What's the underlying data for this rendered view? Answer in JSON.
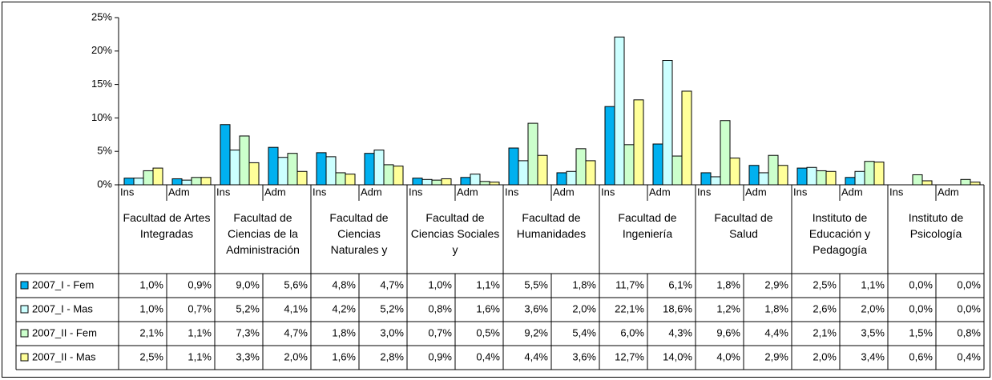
{
  "chart_data": {
    "type": "bar",
    "categories": [
      "Ins",
      "Adm",
      "Ins",
      "Adm",
      "Ins",
      "Adm",
      "Ins",
      "Adm",
      "Ins",
      "Adm",
      "Ins",
      "Adm",
      "Ins",
      "Adm",
      "Ins",
      "Adm",
      "Ins",
      "Adm"
    ],
    "groups": [
      "Facultad de Artes Integradas",
      "Facultad de Ciencias de la Administración",
      "Facultad de Ciencias Naturales y",
      "Facultad de Ciencias Sociales y",
      "Facultad de Humanidades",
      "Facultad de Ingeniería",
      "Facultad de Salud",
      "Instituto de Educación y Pedagogía",
      "Instituto de Psicología"
    ],
    "series": [
      {
        "name": "2007_I - Fem",
        "color": "#00b0f0",
        "values": [
          1.0,
          0.9,
          9.0,
          5.6,
          4.8,
          4.7,
          1.0,
          1.1,
          5.5,
          1.8,
          11.7,
          6.1,
          1.8,
          2.9,
          2.5,
          1.1,
          0.0,
          0.0
        ],
        "value_labels": [
          "1,0%",
          "0,9%",
          "9,0%",
          "5,6%",
          "4,8%",
          "4,7%",
          "1,0%",
          "1,1%",
          "5,5%",
          "1,8%",
          "11,7%",
          "6,1%",
          "1,8%",
          "2,9%",
          "2,5%",
          "1,1%",
          "0,0%",
          "0,0%"
        ]
      },
      {
        "name": "2007_I - Mas",
        "color": "#ccffff",
        "values": [
          1.0,
          0.7,
          5.2,
          4.1,
          4.2,
          5.2,
          0.8,
          1.6,
          3.6,
          2.0,
          22.1,
          18.6,
          1.2,
          1.8,
          2.6,
          2.0,
          0.0,
          0.0
        ],
        "value_labels": [
          "1,0%",
          "0,7%",
          "5,2%",
          "4,1%",
          "4,2%",
          "5,2%",
          "0,8%",
          "1,6%",
          "3,6%",
          "2,0%",
          "22,1%",
          "18,6%",
          "1,2%",
          "1,8%",
          "2,6%",
          "2,0%",
          "0,0%",
          "0,0%"
        ]
      },
      {
        "name": "2007_II - Fem",
        "color": "#ccffcc",
        "values": [
          2.1,
          1.1,
          7.3,
          4.7,
          1.8,
          3.0,
          0.7,
          0.5,
          9.2,
          5.4,
          6.0,
          4.3,
          9.6,
          4.4,
          2.1,
          3.5,
          1.5,
          0.8
        ],
        "value_labels": [
          "2,1%",
          "1,1%",
          "7,3%",
          "4,7%",
          "1,8%",
          "3,0%",
          "0,7%",
          "0,5%",
          "9,2%",
          "5,4%",
          "6,0%",
          "4,3%",
          "9,6%",
          "4,4%",
          "2,1%",
          "3,5%",
          "1,5%",
          "0,8%"
        ]
      },
      {
        "name": "2007_II - Mas",
        "color": "#ffff99",
        "values": [
          2.5,
          1.1,
          3.3,
          2.0,
          1.6,
          2.8,
          0.9,
          0.4,
          4.4,
          3.6,
          12.7,
          14.0,
          4.0,
          2.9,
          2.0,
          3.4,
          0.6,
          0.4
        ],
        "value_labels": [
          "2,5%",
          "1,1%",
          "3,3%",
          "2,0%",
          "1,6%",
          "2,8%",
          "0,9%",
          "0,4%",
          "4,4%",
          "3,6%",
          "12,7%",
          "14,0%",
          "4,0%",
          "2,9%",
          "2,0%",
          "3,4%",
          "0,6%",
          "0,4%"
        ]
      }
    ],
    "ylim": [
      0,
      25
    ],
    "yticks": [
      {
        "value": 0,
        "label": "0%"
      },
      {
        "value": 5,
        "label": "5%"
      },
      {
        "value": 10,
        "label": "10%"
      },
      {
        "value": 15,
        "label": "15%"
      },
      {
        "value": 20,
        "label": "20%"
      },
      {
        "value": 25,
        "label": "25%"
      }
    ]
  }
}
